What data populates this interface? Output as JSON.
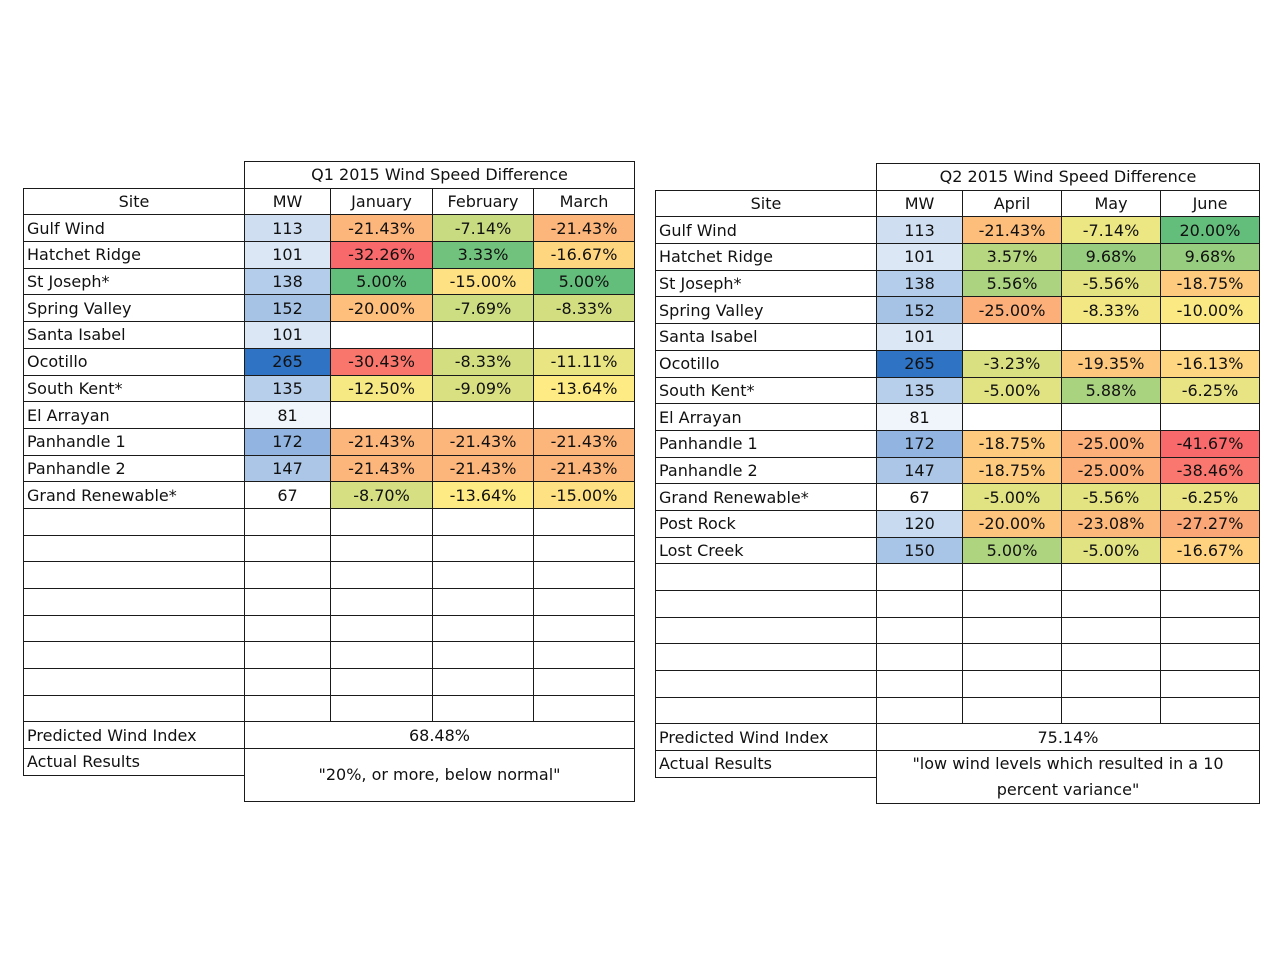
{
  "q1": {
    "title": "Q1 2015 Wind Speed Difference",
    "headers": [
      "Site",
      "MW",
      "January",
      "February",
      "March"
    ],
    "rows": [
      {
        "site": "Gulf Wind",
        "mw": "113",
        "v": [
          "-21.43%",
          "-7.14%",
          "-21.43%"
        ]
      },
      {
        "site": "Hatchet Ridge",
        "mw": "101",
        "v": [
          "-32.26%",
          "3.33%",
          "-16.67%"
        ]
      },
      {
        "site": "St Joseph*",
        "mw": "138",
        "v": [
          "5.00%",
          "-15.00%",
          "5.00%"
        ]
      },
      {
        "site": "Spring Valley",
        "mw": "152",
        "v": [
          "-20.00%",
          "-7.69%",
          "-8.33%"
        ]
      },
      {
        "site": "Santa Isabel",
        "mw": "101",
        "v": [
          "",
          "",
          ""
        ]
      },
      {
        "site": "Ocotillo",
        "mw": "265",
        "v": [
          "-30.43%",
          "-8.33%",
          "-11.11%"
        ]
      },
      {
        "site": "South Kent*",
        "mw": "135",
        "v": [
          "-12.50%",
          "-9.09%",
          "-13.64%"
        ]
      },
      {
        "site": "El Arrayan",
        "mw": "81",
        "v": [
          "",
          "",
          ""
        ]
      },
      {
        "site": "Panhandle 1",
        "mw": "172",
        "v": [
          "-21.43%",
          "-21.43%",
          "-21.43%"
        ]
      },
      {
        "site": "Panhandle 2",
        "mw": "147",
        "v": [
          "-21.43%",
          "-21.43%",
          "-21.43%"
        ]
      },
      {
        "site": "Grand Renewable*",
        "mw": "67",
        "v": [
          "-8.70%",
          "-13.64%",
          "-15.00%"
        ]
      }
    ],
    "empty_rows": 8,
    "predicted_label": "Predicted Wind Index",
    "predicted_value": "68.48%",
    "actual_label": "Actual Results",
    "actual_value": "\"20%, or more, below normal\""
  },
  "q2": {
    "title": "Q2 2015 Wind Speed Difference",
    "headers": [
      "Site",
      "MW",
      "April",
      "May",
      "June"
    ],
    "rows": [
      {
        "site": "Gulf Wind",
        "mw": "113",
        "v": [
          "-21.43%",
          "-7.14%",
          "20.00%"
        ]
      },
      {
        "site": "Hatchet Ridge",
        "mw": "101",
        "v": [
          "3.57%",
          "9.68%",
          "9.68%"
        ]
      },
      {
        "site": "St Joseph*",
        "mw": "138",
        "v": [
          "5.56%",
          "-5.56%",
          "-18.75%"
        ]
      },
      {
        "site": "Spring Valley",
        "mw": "152",
        "v": [
          "-25.00%",
          "-8.33%",
          "-10.00%"
        ]
      },
      {
        "site": "Santa Isabel",
        "mw": "101",
        "v": [
          "",
          "",
          ""
        ]
      },
      {
        "site": "Ocotillo",
        "mw": "265",
        "v": [
          "-3.23%",
          "-19.35%",
          "-16.13%"
        ]
      },
      {
        "site": "South Kent*",
        "mw": "135",
        "v": [
          "-5.00%",
          "5.88%",
          "-6.25%"
        ]
      },
      {
        "site": "El Arrayan",
        "mw": "81",
        "v": [
          "",
          "",
          ""
        ]
      },
      {
        "site": "Panhandle 1",
        "mw": "172",
        "v": [
          "-18.75%",
          "-25.00%",
          "-41.67%"
        ]
      },
      {
        "site": "Panhandle 2",
        "mw": "147",
        "v": [
          "-18.75%",
          "-25.00%",
          "-38.46%"
        ]
      },
      {
        "site": "Grand Renewable*",
        "mw": "67",
        "v": [
          "-5.00%",
          "-5.56%",
          "-6.25%"
        ]
      },
      {
        "site": "Post Rock",
        "mw": "120",
        "v": [
          "-20.00%",
          "-23.08%",
          "-27.27%"
        ]
      },
      {
        "site": "Lost Creek",
        "mw": "150",
        "v": [
          "5.00%",
          "-5.00%",
          "-16.67%"
        ]
      }
    ],
    "empty_rows": 6,
    "predicted_label": "Predicted Wind Index",
    "predicted_value": "75.14%",
    "actual_label": "Actual Results",
    "actual_value": "\"low wind levels which resulted in a 10 percent variance\""
  },
  "colors": {
    "green": "#63be7b",
    "yellow": "#ffeb84",
    "red": "#f8696b",
    "mw_light": "#ffffff",
    "mw_dark": "#2f73c4"
  }
}
